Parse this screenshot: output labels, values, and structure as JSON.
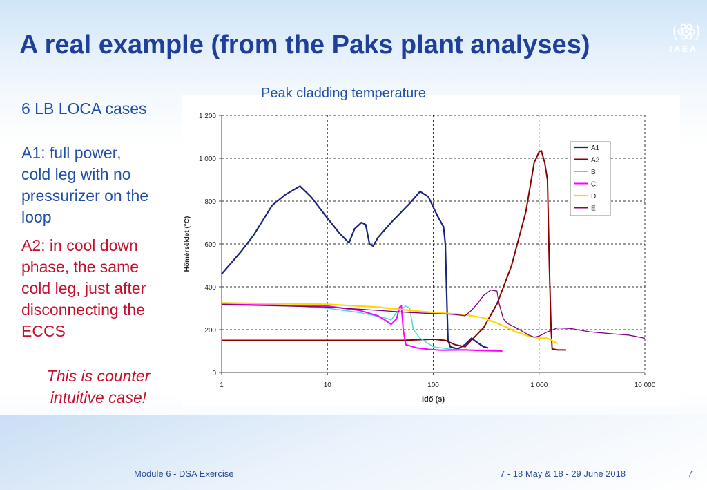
{
  "slide": {
    "title": "A real example (from the Paks plant analyses)",
    "logo_text": "IAEA",
    "subtitle": "6 LB LOCA cases",
    "a1_text": [
      "A1: full power,",
      "cold leg with no",
      "pressurizer on the",
      "loop"
    ],
    "a2_text": [
      "A2:  in cool down",
      "phase, the same",
      "cold leg, just after",
      "disconnecting the",
      "ECCS"
    ],
    "note_text": [
      "This is counter",
      "intuitive case!"
    ],
    "footer_left": "Module 6 - DSA  Exercise",
    "footer_mid": "7 - 18 May & 18 - 29 June 2018",
    "page_number": "7"
  },
  "chart_data": {
    "type": "line",
    "title": "Peak cladding temperature",
    "xlabel": "Idő (s)",
    "ylabel": "Hőmérséklet (°C)",
    "x_scale": "log",
    "xlim": [
      1,
      10000
    ],
    "ylim": [
      0,
      1200
    ],
    "x_ticks": [
      1,
      10,
      100,
      1000,
      10000
    ],
    "x_tick_labels": [
      "1",
      "10",
      "100",
      "1 000",
      "10 000"
    ],
    "y_ticks": [
      0,
      200,
      400,
      600,
      800,
      1000,
      1200
    ],
    "y_tick_labels": [
      "0",
      "200",
      "400",
      "600",
      "800",
      "1 000",
      "1 200"
    ],
    "grid": true,
    "legend_position": "top-right",
    "series": [
      {
        "name": "A1",
        "color": "#1a237e",
        "width": 2.2,
        "points": [
          [
            1,
            460
          ],
          [
            1.5,
            560
          ],
          [
            2,
            640
          ],
          [
            3,
            780
          ],
          [
            4,
            830
          ],
          [
            5.5,
            870
          ],
          [
            7,
            820
          ],
          [
            10,
            720
          ],
          [
            13,
            650
          ],
          [
            16,
            605
          ],
          [
            18,
            670
          ],
          [
            21,
            700
          ],
          [
            23,
            690
          ],
          [
            25,
            600
          ],
          [
            27,
            590
          ],
          [
            30,
            630
          ],
          [
            40,
            700
          ],
          [
            60,
            790
          ],
          [
            75,
            845
          ],
          [
            90,
            820
          ],
          [
            110,
            730
          ],
          [
            125,
            680
          ],
          [
            130,
            600
          ],
          [
            135,
            300
          ],
          [
            138,
            150
          ],
          [
            145,
            120
          ],
          [
            170,
            110
          ],
          [
            200,
            130
          ],
          [
            230,
            160
          ],
          [
            260,
            140
          ],
          [
            300,
            120
          ],
          [
            330,
            115
          ]
        ]
      },
      {
        "name": "A2",
        "color": "#8b0000",
        "width": 2,
        "points": [
          [
            1,
            150
          ],
          [
            50,
            150
          ],
          [
            100,
            155
          ],
          [
            130,
            150
          ],
          [
            160,
            130
          ],
          [
            200,
            120
          ],
          [
            300,
            210
          ],
          [
            400,
            320
          ],
          [
            550,
            500
          ],
          [
            750,
            750
          ],
          [
            900,
            980
          ],
          [
            1000,
            1030
          ],
          [
            1050,
            1035
          ],
          [
            1130,
            980
          ],
          [
            1200,
            900
          ],
          [
            1250,
            500
          ],
          [
            1300,
            200
          ],
          [
            1330,
            110
          ],
          [
            1500,
            105
          ],
          [
            1800,
            105
          ]
        ]
      },
      {
        "name": "B",
        "color": "#40e0e0",
        "width": 1.5,
        "points": [
          [
            1,
            315
          ],
          [
            5,
            310
          ],
          [
            10,
            300
          ],
          [
            20,
            280
          ],
          [
            35,
            255
          ],
          [
            40,
            245
          ],
          [
            45,
            280
          ],
          [
            55,
            310
          ],
          [
            60,
            300
          ],
          [
            65,
            200
          ],
          [
            75,
            160
          ],
          [
            100,
            120
          ],
          [
            150,
            108
          ],
          [
            250,
            105
          ],
          [
            400,
            105
          ]
        ]
      },
      {
        "name": "C",
        "color": "#ff00ff",
        "width": 2,
        "points": [
          [
            1,
            318
          ],
          [
            10,
            310
          ],
          [
            20,
            290
          ],
          [
            30,
            265
          ],
          [
            35,
            245
          ],
          [
            40,
            225
          ],
          [
            45,
            250
          ],
          [
            48,
            305
          ],
          [
            50,
            310
          ],
          [
            52,
            200
          ],
          [
            55,
            130
          ],
          [
            70,
            115
          ],
          [
            90,
            108
          ],
          [
            120,
            104
          ],
          [
            200,
            105
          ],
          [
            300,
            102
          ],
          [
            450,
            100
          ]
        ]
      },
      {
        "name": "D",
        "color": "#ffd700",
        "width": 2.2,
        "points": [
          [
            1,
            325
          ],
          [
            10,
            318
          ],
          [
            30,
            305
          ],
          [
            60,
            290
          ],
          [
            100,
            280
          ],
          [
            200,
            270
          ],
          [
            300,
            255
          ],
          [
            400,
            230
          ],
          [
            500,
            210
          ],
          [
            600,
            190
          ],
          [
            800,
            170
          ],
          [
            1000,
            160
          ],
          [
            1200,
            160
          ],
          [
            1500,
            135
          ]
        ]
      },
      {
        "name": "E",
        "color": "#800080",
        "width": 1.3,
        "points": [
          [
            1,
            318
          ],
          [
            10,
            305
          ],
          [
            30,
            290
          ],
          [
            60,
            280
          ],
          [
            100,
            275
          ],
          [
            150,
            272
          ],
          [
            200,
            265
          ],
          [
            230,
            290
          ],
          [
            260,
            320
          ],
          [
            300,
            360
          ],
          [
            350,
            385
          ],
          [
            400,
            380
          ],
          [
            420,
            320
          ],
          [
            460,
            250
          ],
          [
            500,
            230
          ],
          [
            600,
            210
          ],
          [
            800,
            175
          ],
          [
            900,
            165
          ],
          [
            1000,
            170
          ],
          [
            1100,
            180
          ],
          [
            1200,
            190
          ],
          [
            1500,
            208
          ],
          [
            2000,
            205
          ],
          [
            3000,
            190
          ],
          [
            5000,
            180
          ],
          [
            7000,
            175
          ],
          [
            10000,
            160
          ]
        ]
      }
    ]
  }
}
